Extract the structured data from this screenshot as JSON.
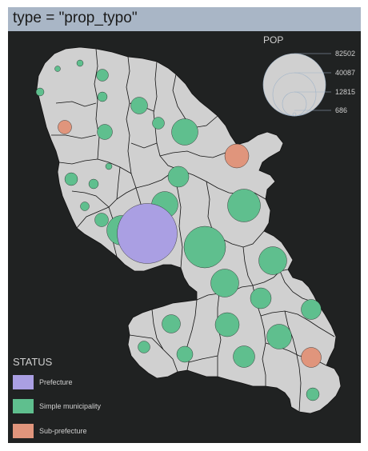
{
  "title": "type = \"prop_typo\"",
  "size_legend": {
    "title": "POP",
    "values": [
      "82502",
      "40087",
      "12815",
      "686"
    ]
  },
  "status_legend": {
    "title": "STATUS",
    "items": [
      {
        "label": "Prefecture",
        "color": "#aa9fe3"
      },
      {
        "label": "Simple municipality",
        "color": "#5fbf8e"
      },
      {
        "label": "Sub-prefecture",
        "color": "#e0957c"
      }
    ]
  },
  "colors": {
    "background": "#202222",
    "land": "#d0d0d0",
    "borders": "#111111",
    "title_bar": "#a9b6c6"
  }
}
